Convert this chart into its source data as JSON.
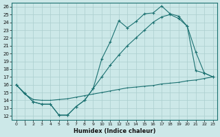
{
  "xlabel": "Humidex (Indice chaleur)",
  "ylabel": "",
  "xlim": [
    -0.5,
    23.5
  ],
  "ylim": [
    11.5,
    26.5
  ],
  "xticks": [
    0,
    1,
    2,
    3,
    4,
    5,
    6,
    7,
    8,
    9,
    10,
    11,
    12,
    13,
    14,
    15,
    16,
    17,
    18,
    19,
    20,
    21,
    22,
    23
  ],
  "yticks": [
    12,
    13,
    14,
    15,
    16,
    17,
    18,
    19,
    20,
    21,
    22,
    23,
    24,
    25,
    26
  ],
  "bg_color": "#cce8e8",
  "grid_color": "#aacece",
  "line_color": "#1a7070",
  "line1_x": [
    0,
    1,
    2,
    3,
    4,
    5,
    6,
    7,
    8,
    9,
    10,
    11,
    12,
    13,
    14,
    15,
    16,
    17,
    18,
    19,
    20,
    21,
    22,
    23
  ],
  "line1_y": [
    16.0,
    14.9,
    13.8,
    13.5,
    13.5,
    12.1,
    12.1,
    13.2,
    14.0,
    15.5,
    19.3,
    21.5,
    24.2,
    23.3,
    24.1,
    25.1,
    25.2,
    26.1,
    25.1,
    24.8,
    23.5,
    17.8,
    17.5,
    17.0
  ],
  "line2_x": [
    0,
    1,
    2,
    3,
    4,
    5,
    6,
    7,
    8,
    9,
    10,
    11,
    12,
    13,
    14,
    15,
    16,
    17,
    18,
    19,
    20,
    21,
    22,
    23
  ],
  "line2_y": [
    16.0,
    14.9,
    13.8,
    13.5,
    13.5,
    12.1,
    12.1,
    13.2,
    14.0,
    15.5,
    17.0,
    18.5,
    19.8,
    21.0,
    22.0,
    23.0,
    24.0,
    24.7,
    25.0,
    24.5,
    23.5,
    20.2,
    17.5,
    17.0
  ],
  "line3_x": [
    0,
    1,
    2,
    3,
    4,
    5,
    6,
    7,
    8,
    9,
    10,
    11,
    12,
    13,
    14,
    15,
    16,
    17,
    18,
    19,
    20,
    21,
    22,
    23
  ],
  "line3_y": [
    16.0,
    14.8,
    14.1,
    14.0,
    14.0,
    14.1,
    14.2,
    14.4,
    14.6,
    14.8,
    15.0,
    15.2,
    15.4,
    15.6,
    15.7,
    15.8,
    15.9,
    16.1,
    16.2,
    16.3,
    16.5,
    16.6,
    16.8,
    17.0
  ]
}
